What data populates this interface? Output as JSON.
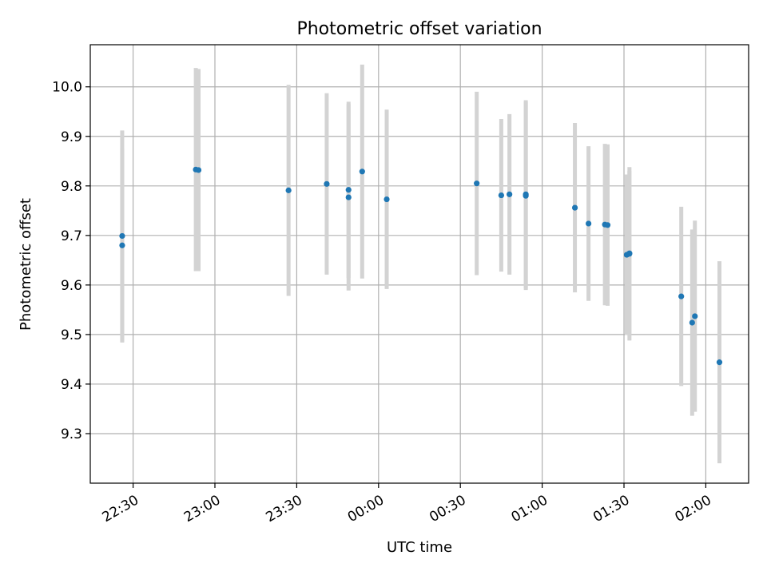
{
  "chart_data": {
    "type": "scatter",
    "title": "Photometric offset variation",
    "xlabel": "UTC time",
    "ylabel": "Photometric offset",
    "x_ticks": [
      "22:30",
      "23:00",
      "23:30",
      "00:00",
      "00:30",
      "01:00",
      "01:30",
      "02:00"
    ],
    "x_tick_minutes": [
      0,
      30,
      60,
      90,
      120,
      150,
      180,
      210
    ],
    "x_axis_reference": "22:30",
    "xlim_minutes": [
      -15.7,
      225.7
    ],
    "y_ticks": [
      9.3,
      9.4,
      9.5,
      9.6,
      9.7,
      9.8,
      9.9,
      10.0
    ],
    "ylim": [
      9.2,
      10.085
    ],
    "grid": true,
    "colors": {
      "point": "#1f77b4",
      "errorbar": "#d3d3d3"
    },
    "points": [
      {
        "time": "22:26",
        "y": 9.699,
        "err": 0.213
      },
      {
        "time": "22:26",
        "y": 9.68,
        "err": 0.196
      },
      {
        "time": "22:53",
        "y": 9.833,
        "err": 0.205
      },
      {
        "time": "22:54",
        "y": 9.832,
        "err": 0.204
      },
      {
        "time": "23:27",
        "y": 9.791,
        "err": 0.213
      },
      {
        "time": "23:41",
        "y": 9.804,
        "err": 0.183
      },
      {
        "time": "23:49",
        "y": 9.777,
        "err": 0.188
      },
      {
        "time": "23:49",
        "y": 9.792,
        "err": 0.178
      },
      {
        "time": "23:54",
        "y": 9.829,
        "err": 0.216
      },
      {
        "time": "00:03",
        "y": 9.773,
        "err": 0.181
      },
      {
        "time": "00:36",
        "y": 9.805,
        "err": 0.185
      },
      {
        "time": "00:45",
        "y": 9.781,
        "err": 0.154
      },
      {
        "time": "00:48",
        "y": 9.783,
        "err": 0.162
      },
      {
        "time": "00:54",
        "y": 9.783,
        "err": 0.19
      },
      {
        "time": "00:54",
        "y": 9.78,
        "err": 0.19
      },
      {
        "time": "01:12",
        "y": 9.756,
        "err": 0.171
      },
      {
        "time": "01:17",
        "y": 9.724,
        "err": 0.156
      },
      {
        "time": "01:23",
        "y": 9.722,
        "err": 0.163
      },
      {
        "time": "01:24",
        "y": 9.721,
        "err": 0.163
      },
      {
        "time": "01:31",
        "y": 9.661,
        "err": 0.162
      },
      {
        "time": "01:32",
        "y": 9.663,
        "err": 0.175
      },
      {
        "time": "01:32",
        "y": 9.664,
        "err": 0.166
      },
      {
        "time": "01:51",
        "y": 9.577,
        "err": 0.181
      },
      {
        "time": "01:55",
        "y": 9.524,
        "err": 0.188
      },
      {
        "time": "01:56",
        "y": 9.537,
        "err": 0.193
      },
      {
        "time": "02:05",
        "y": 9.444,
        "err": 0.204
      }
    ]
  }
}
